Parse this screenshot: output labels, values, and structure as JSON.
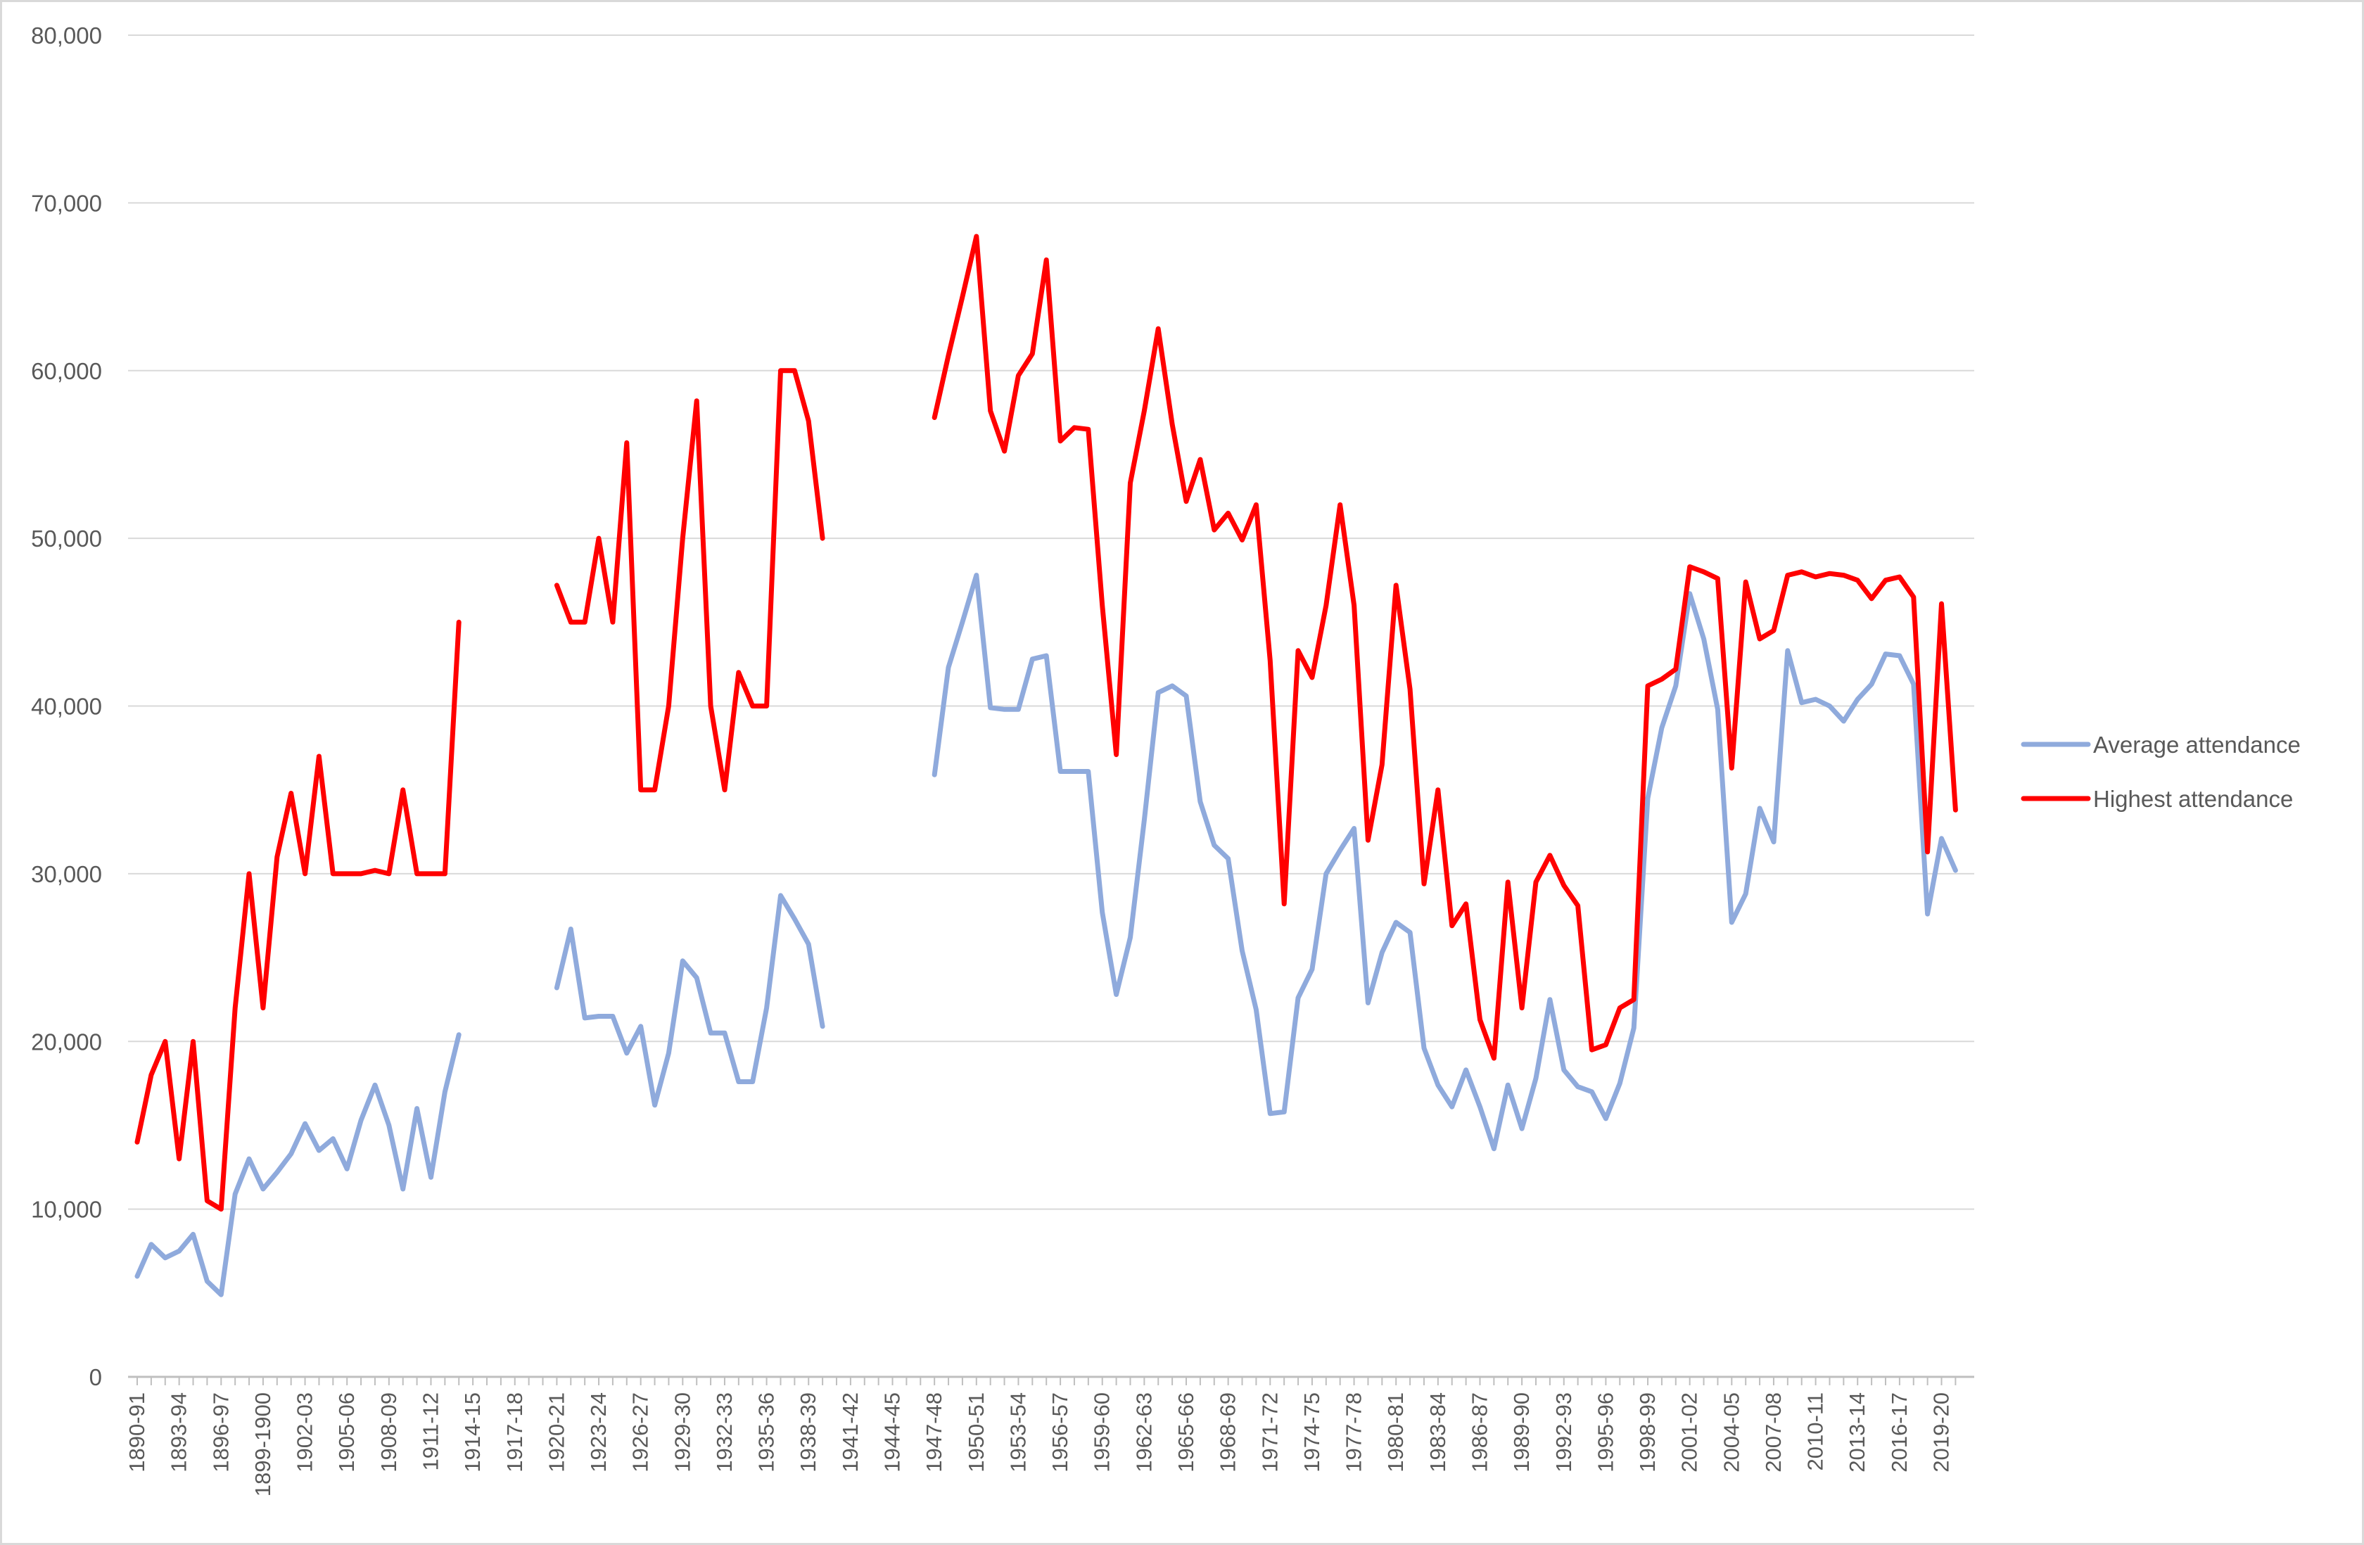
{
  "chart_data": {
    "type": "line",
    "title": "",
    "xlabel": "",
    "ylabel": "",
    "ylim": [
      0,
      80000
    ],
    "yticks": [
      0,
      10000,
      20000,
      30000,
      40000,
      50000,
      60000,
      70000,
      80000
    ],
    "ytick_labels": [
      "0",
      "10,000",
      "20,000",
      "30,000",
      "40,000",
      "50,000",
      "60,000",
      "70,000",
      "80,000"
    ],
    "xtick_labels": [
      "1890-91",
      "1893-94",
      "1896-97",
      "1899-1900",
      "1902-03",
      "1905-06",
      "1908-09",
      "1911-12",
      "1914-15",
      "1917-18",
      "1920-21",
      "1923-24",
      "1926-27",
      "1929-30",
      "1932-33",
      "1935-36",
      "1938-39",
      "1941-42",
      "1944-45",
      "1947-48",
      "1950-51",
      "1953-54",
      "1956-57",
      "1959-60",
      "1962-63",
      "1965-66",
      "1968-69",
      "1971-72",
      "1974-75",
      "1977-78",
      "1980-81",
      "1983-84",
      "1986-87",
      "1989-90",
      "1992-93",
      "1995-96",
      "1998-99",
      "2001-02",
      "2004-05",
      "2007-08",
      "2010-11",
      "2013-14",
      "2016-17",
      "2019-20"
    ],
    "grid": true,
    "legend_position": "right",
    "series": [
      {
        "name": "Average attendance",
        "color": "#8faadc",
        "values": [
          6000,
          7900,
          7100,
          7500,
          8500,
          5700,
          4900,
          10900,
          13000,
          11200,
          12200,
          13300,
          15100,
          13500,
          14200,
          12400,
          15300,
          17400,
          15000,
          11200,
          16000,
          11900,
          17000,
          20400,
          null,
          null,
          null,
          null,
          null,
          null,
          23200,
          26700,
          21400,
          21500,
          21500,
          19300,
          20900,
          16200,
          19300,
          24800,
          23800,
          20500,
          20500,
          17600,
          17600,
          22000,
          28700,
          27300,
          25800,
          20900,
          null,
          null,
          null,
          null,
          null,
          null,
          null,
          35900,
          42300,
          45000,
          47800,
          39900,
          39800,
          39800,
          42800,
          43000,
          36100,
          36100,
          36100,
          27700,
          22800,
          26200,
          33200,
          40800,
          41200,
          40600,
          34300,
          31700,
          30900,
          25400,
          21900,
          15700,
          15800,
          22600,
          24300,
          30000,
          31400,
          32700,
          22300,
          25300,
          27100,
          26500,
          19600,
          17400,
          16100,
          18300,
          16100,
          13600,
          17400,
          14800,
          17800,
          22500,
          18300,
          17300,
          17000,
          15400,
          17500,
          20800,
          34500,
          38700,
          41200,
          46700,
          44000,
          39800,
          27100,
          28800,
          33900,
          31900,
          43300,
          40200,
          40400,
          40000,
          39100,
          40400,
          41300,
          43100,
          43000,
          41300,
          27600,
          32100,
          30200
        ]
      },
      {
        "name": "Highest attendance",
        "color": "#ff0000",
        "values": [
          14000,
          18000,
          20000,
          13000,
          20000,
          10500,
          10000,
          22000,
          30000,
          22000,
          31000,
          34800,
          30000,
          37000,
          30000,
          30000,
          30000,
          30200,
          30000,
          35000,
          30000,
          30000,
          30000,
          45000,
          null,
          null,
          null,
          null,
          null,
          null,
          47200,
          45000,
          45000,
          50000,
          45000,
          55700,
          35000,
          35000,
          40000,
          50000,
          58200,
          40000,
          35000,
          42000,
          40000,
          40000,
          60000,
          60000,
          57000,
          50000,
          null,
          null,
          null,
          null,
          null,
          null,
          null,
          57200,
          60900,
          64400,
          68000,
          57600,
          55200,
          59700,
          61000,
          66600,
          55800,
          56600,
          56500,
          46000,
          37100,
          53300,
          57600,
          62500,
          56800,
          52200,
          54700,
          50500,
          51500,
          49900,
          52000,
          42700,
          28200,
          43300,
          41700,
          46000,
          52000,
          46000,
          32000,
          36500,
          47200,
          41000,
          29400,
          35000,
          26900,
          28200,
          21300,
          19000,
          29500,
          22000,
          29500,
          31100,
          29300,
          28100,
          19500,
          19800,
          22000,
          22500,
          41200,
          41600,
          42200,
          48300,
          48000,
          47600,
          36300,
          47400,
          44000,
          44500,
          47800,
          48000,
          47700,
          47900,
          47800,
          47500,
          46400,
          47500,
          47700,
          46500,
          31300,
          46100,
          33800
        ]
      }
    ]
  }
}
